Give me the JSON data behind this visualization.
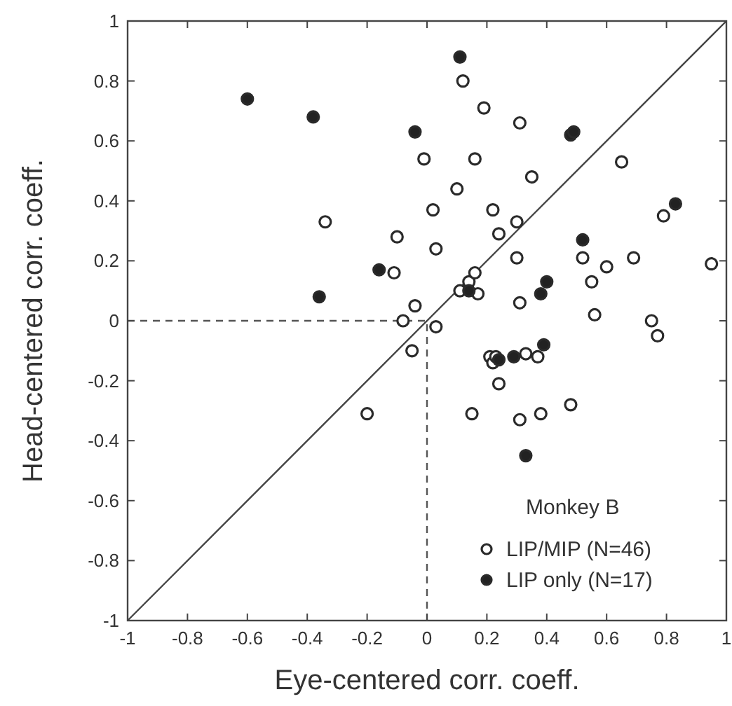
{
  "chart_data": {
    "type": "scatter",
    "xlabel": "Eye-centered corr. coeff.",
    "ylabel": "Head-centered corr. coeff.",
    "legend_title": "Monkey B",
    "legend": "bottom right",
    "grid": false,
    "xlim": [
      -1,
      1
    ],
    "ylim": [
      -1,
      1
    ],
    "xticks": [
      -1,
      -0.8,
      -0.6,
      -0.4,
      -0.2,
      0,
      0.2,
      0.4,
      0.6,
      0.8,
      1
    ],
    "yticks": [
      -1,
      -0.8,
      -0.6,
      -0.4,
      -0.2,
      0,
      0.2,
      0.4,
      0.6,
      0.8,
      1
    ],
    "series": [
      {
        "name": "LIP/MIP (N=46)",
        "color": "#ffffff",
        "marker": "circle",
        "x": [
          -0.01,
          -0.34,
          -0.1,
          -0.11,
          -0.04,
          -0.08,
          0.02,
          0.03,
          0.1,
          0.22,
          0.24,
          0.03,
          -0.05,
          -0.2,
          0.15,
          0.11,
          0.14,
          0.16,
          0.17,
          0.24,
          0.21,
          0.22,
          0.12,
          0.19,
          0.31,
          0.16,
          0.35,
          0.65,
          0.3,
          0.79,
          0.3,
          0.52,
          0.6,
          0.69,
          0.95,
          0.55,
          0.31,
          0.56,
          0.75,
          0.77,
          0.33,
          0.37,
          0.31,
          0.38,
          0.48,
          0.23
        ],
        "values": [
          0.54,
          0.33,
          0.28,
          0.16,
          0.05,
          0.0,
          0.37,
          0.24,
          0.44,
          0.37,
          0.29,
          -0.02,
          -0.1,
          -0.31,
          -0.31,
          0.1,
          0.13,
          0.16,
          0.09,
          -0.21,
          -0.12,
          -0.14,
          0.8,
          0.71,
          0.66,
          0.54,
          0.48,
          0.53,
          0.33,
          0.35,
          0.21,
          0.21,
          0.18,
          0.21,
          0.19,
          0.13,
          0.06,
          0.02,
          0.0,
          -0.05,
          -0.11,
          -0.12,
          -0.33,
          -0.31,
          -0.28,
          -0.12
        ]
      },
      {
        "name": "LIP only (N=17)",
        "color": "#222222",
        "marker": "circle",
        "x": [
          -0.6,
          -0.38,
          -0.36,
          -0.04,
          0.11,
          0.48,
          0.49,
          0.83,
          0.52,
          0.4,
          0.38,
          -0.16,
          0.14,
          0.39,
          0.29,
          0.24,
          0.33
        ],
        "values": [
          0.74,
          0.68,
          0.08,
          0.63,
          0.88,
          0.62,
          0.63,
          0.39,
          0.27,
          0.13,
          0.09,
          0.17,
          0.1,
          -0.08,
          -0.12,
          -0.13,
          -0.45
        ]
      },
      {
        "type": "line",
        "color": "#444444",
        "line_style": "solid",
        "marker": "none",
        "x": [
          -1,
          1
        ],
        "values": [
          -1,
          1
        ]
      },
      {
        "type": "line",
        "color": "#555555",
        "line_style": "dashed",
        "marker": "none",
        "x": [
          -1,
          0,
          0
        ],
        "values": [
          0,
          0,
          -1
        ]
      }
    ]
  }
}
